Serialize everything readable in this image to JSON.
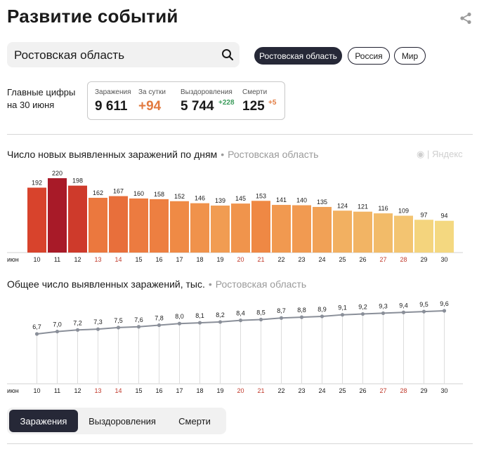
{
  "page": {
    "title": "Развитие событий"
  },
  "search": {
    "value": "Ростовская область"
  },
  "region_pills": [
    {
      "label": "Ростовская область",
      "active": true
    },
    {
      "label": "Россия",
      "active": false
    },
    {
      "label": "Мир",
      "active": false
    }
  ],
  "summary": {
    "headline_1": "Главные цифры",
    "headline_2": "на 30 июня",
    "infections_label": "Заражения",
    "infections_value": "9 611",
    "per_day_label": "За сутки",
    "per_day_value": "+94",
    "recovered_label": "Выздоровления",
    "recovered_value": "5 744",
    "recovered_delta": "+228",
    "deaths_label": "Смерти",
    "deaths_value": "125",
    "deaths_delta": "+5"
  },
  "watermark": "Яндекс",
  "colors": {
    "accent_dark": "#262837",
    "delta_orange": "#e27a3f",
    "delta_green": "#3a9b5a"
  },
  "chart_data": [
    {
      "type": "bar",
      "title": "Число новых выявленных заражений по дням",
      "region": "Ростовская область",
      "month_label": "июн",
      "categories": [
        "10",
        "11",
        "12",
        "13",
        "14",
        "15",
        "16",
        "17",
        "18",
        "19",
        "20",
        "21",
        "22",
        "23",
        "24",
        "25",
        "26",
        "27",
        "28",
        "29",
        "30"
      ],
      "weekend_categories": [
        "13",
        "14",
        "20",
        "21",
        "27",
        "28"
      ],
      "values": [
        192,
        220,
        198,
        162,
        167,
        160,
        158,
        152,
        146,
        139,
        145,
        153,
        141,
        140,
        135,
        124,
        121,
        116,
        109,
        97,
        94
      ],
      "ylim": [
        0,
        220
      ]
    },
    {
      "type": "line",
      "title": "Общее число выявленных заражений, тыс.",
      "region": "Ростовская область",
      "month_label": "июн",
      "categories": [
        "10",
        "11",
        "12",
        "13",
        "14",
        "15",
        "16",
        "17",
        "18",
        "19",
        "20",
        "21",
        "22",
        "23",
        "24",
        "25",
        "26",
        "27",
        "28",
        "29",
        "30"
      ],
      "weekend_categories": [
        "13",
        "14",
        "20",
        "21",
        "27",
        "28"
      ],
      "values": [
        6.7,
        7.0,
        7.2,
        7.3,
        7.5,
        7.6,
        7.8,
        8.0,
        8.1,
        8.2,
        8.4,
        8.5,
        8.7,
        8.8,
        8.9,
        9.1,
        9.2,
        9.3,
        9.4,
        9.5,
        9.6
      ],
      "value_labels": [
        "6,7",
        "7,0",
        "7,2",
        "7,3",
        "7,5",
        "7,6",
        "7,8",
        "8,0",
        "8,1",
        "8,2",
        "8,4",
        "8,5",
        "8,7",
        "8,8",
        "8,9",
        "9,1",
        "9,2",
        "9,3",
        "9,4",
        "9,5",
        "9,6"
      ],
      "ylim": [
        0,
        10
      ]
    }
  ],
  "bottom_tabs": [
    {
      "label": "Заражения",
      "active": true
    },
    {
      "label": "Выздоровления",
      "active": false
    },
    {
      "label": "Смерти",
      "active": false
    }
  ]
}
